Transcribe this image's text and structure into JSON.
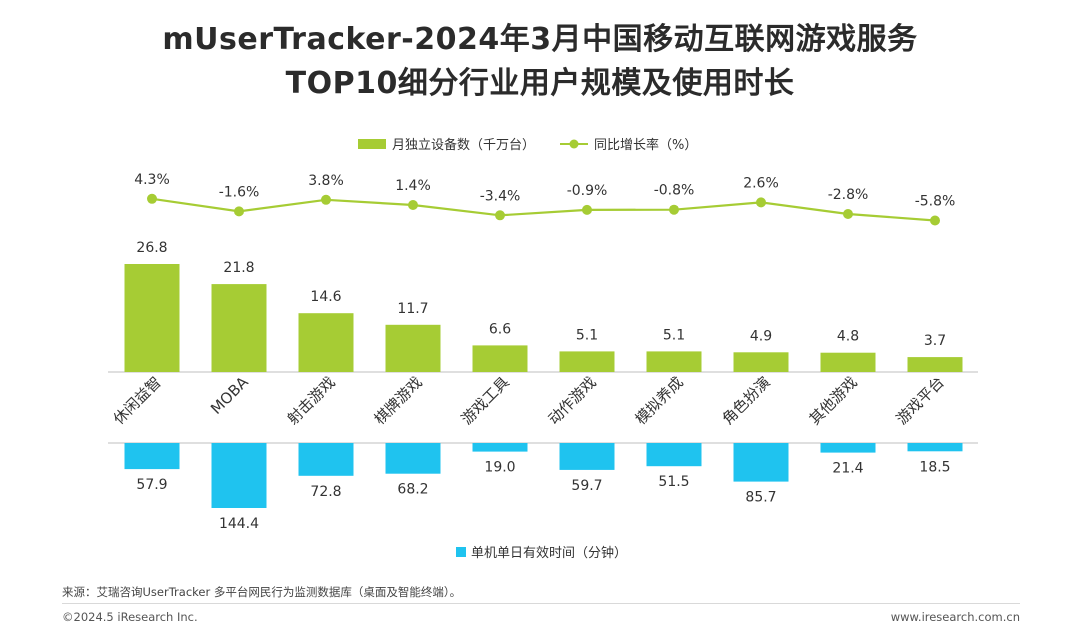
{
  "title_line1": "mUserTracker-2024年3月中国移动互联网游戏服务",
  "title_line2": "TOP10细分行业用户规模及使用时长",
  "colors": {
    "bar": "#a6cc34",
    "line": "#a6cc34",
    "duration": "#1fc3ef",
    "axis": "#bfbfbf"
  },
  "chart_data": {
    "type": "bar",
    "title": "mUserTracker-2024年3月中国移动互联网游戏服务 TOP10细分行业用户规模及使用时长",
    "categories": [
      "休闲益智",
      "MOBA",
      "射击游戏",
      "棋牌游戏",
      "游戏工具",
      "动作游戏",
      "模拟养成",
      "角色扮演",
      "其他游戏",
      "游戏平台"
    ],
    "series": [
      {
        "name": "月独立设备数（千万台）",
        "kind": "bar",
        "values": [
          26.8,
          21.8,
          14.6,
          11.7,
          6.6,
          5.1,
          5.1,
          4.9,
          4.8,
          3.7
        ],
        "labels": [
          "26.8",
          "21.8",
          "14.6",
          "11.7",
          "6.6",
          "5.1",
          "5.1",
          "4.9",
          "4.8",
          "3.7"
        ]
      },
      {
        "name": "同比增长率（%）",
        "kind": "line",
        "values": [
          4.3,
          -1.6,
          3.8,
          1.4,
          -3.4,
          -0.9,
          -0.8,
          2.6,
          -2.8,
          -5.8
        ],
        "labels": [
          "4.3%",
          "-1.6%",
          "3.8%",
          "1.4%",
          "-3.4%",
          "-0.9%",
          "-0.8%",
          "2.6%",
          "-2.8%",
          "-5.8%"
        ]
      },
      {
        "name": "单机单日有效时间（分钟）",
        "kind": "bar-down",
        "values": [
          57.9,
          144.4,
          72.8,
          68.2,
          19.0,
          59.7,
          51.5,
          85.7,
          21.4,
          18.5
        ],
        "labels": [
          "57.9",
          "144.4",
          "72.8",
          "68.2",
          "19.0",
          "59.7",
          "51.5",
          "85.7",
          "21.4",
          "18.5"
        ]
      }
    ],
    "legend": {
      "top": [
        "月独立设备数（千万台）",
        "同比增长率（%）"
      ],
      "bottom": [
        "单机单日有效时间（分钟）"
      ]
    }
  },
  "source": "来源：艾瑞咨询UserTracker 多平台网民行为监测数据库（桌面及智能终端）。",
  "copyright": "©2024.5 iResearch Inc.",
  "website": "www.iresearch.com.cn"
}
